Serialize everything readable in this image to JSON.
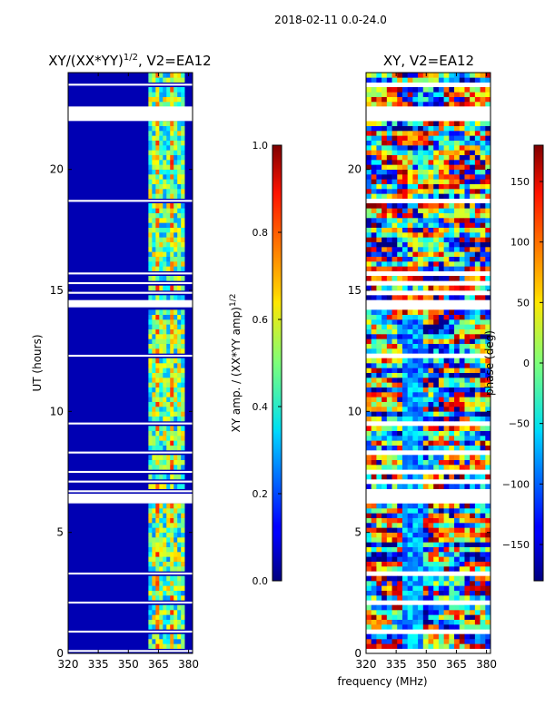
{
  "suptitle": "2018-02-11 0.0-24.0",
  "chart_data": [
    {
      "type": "heatmap",
      "title": "XY/(XX*YY)",
      "title_exponent": "1/2",
      "title_suffix": ", V2=EA12",
      "xlabel": "",
      "ylabel": "UT (hours)",
      "xlim": [
        320,
        382
      ],
      "ylim": [
        0,
        24
      ],
      "xticks": [
        320,
        335,
        350,
        365,
        380
      ],
      "yticks": [
        0,
        5,
        10,
        15,
        20
      ],
      "colorbar": {
        "label": "XY amp. / (XX*YY amp)",
        "label_exponent": "1/2",
        "range": [
          0.0,
          1.0
        ],
        "ticks": [
          "0.0",
          "0.2",
          "0.4",
          "0.6",
          "0.8",
          "1.0"
        ],
        "colormap": "jet"
      },
      "flagged_hours": [
        [
          6.2,
          6.6
        ],
        [
          22.0,
          22.6
        ],
        [
          14.3,
          14.6
        ]
      ],
      "bright_band_mhz": [
        360,
        378
      ],
      "background_value": 0.05
    },
    {
      "type": "heatmap",
      "title": "XY, V2=EA12",
      "xlabel": "frequency (MHz)",
      "ylabel": "",
      "xlim": [
        320,
        382
      ],
      "ylim": [
        0,
        24
      ],
      "xticks": [
        320,
        335,
        350,
        365,
        380
      ],
      "yticks": [
        0,
        5,
        10,
        15,
        20
      ],
      "colorbar": {
        "label": "phase (deg)",
        "range": [
          -180,
          180
        ],
        "ticks": [
          "−150",
          "−100",
          "−50",
          "0",
          "50",
          "100",
          "150"
        ],
        "tick_values": [
          -150,
          -100,
          -50,
          0,
          50,
          100,
          150
        ],
        "colormap": "jet"
      },
      "flagged_hours": [
        [
          6.2,
          6.6
        ],
        [
          22.0,
          22.6
        ],
        [
          14.3,
          14.6
        ]
      ]
    }
  ]
}
